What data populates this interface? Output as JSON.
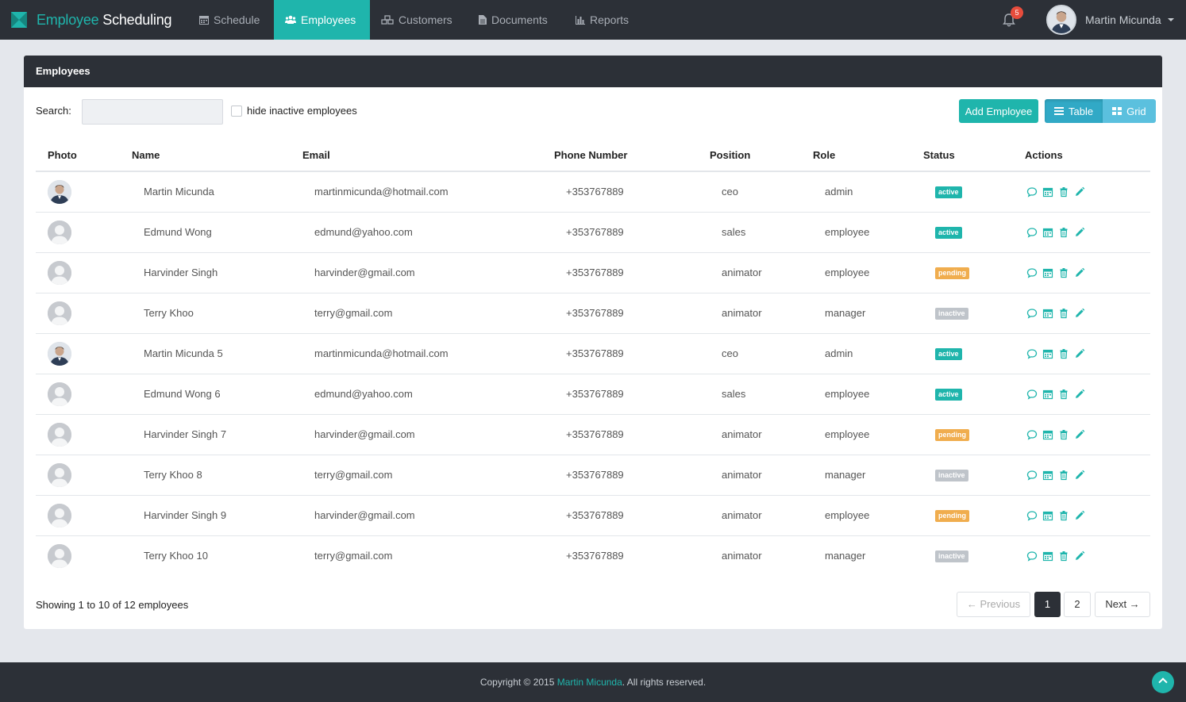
{
  "brand": {
    "part1": "Employee",
    "part2": "Scheduling"
  },
  "nav": [
    {
      "label": "Schedule",
      "icon": "calendar-icon"
    },
    {
      "label": "Employees",
      "icon": "users-icon",
      "active": true
    },
    {
      "label": "Customers",
      "icon": "cubes-icon"
    },
    {
      "label": "Documents",
      "icon": "file-icon"
    },
    {
      "label": "Reports",
      "icon": "bar-chart-icon"
    }
  ],
  "notifications": {
    "count": "5"
  },
  "user": {
    "name": "Martin Micunda"
  },
  "panel": {
    "title": "Employees"
  },
  "search": {
    "label": "Search:",
    "value": "",
    "placeholder": ""
  },
  "filter": {
    "hide_inactive_label": "hide inactive employees",
    "checked": false
  },
  "toolbar": {
    "add_label": "Add Employee",
    "table_label": "Table",
    "grid_label": "Grid",
    "view": "Table"
  },
  "table": {
    "columns": [
      "Photo",
      "Name",
      "Email",
      "Phone Number",
      "Position",
      "Role",
      "Status",
      "Actions"
    ],
    "rows": [
      {
        "photo": "user-photo",
        "name": "Martin Micunda",
        "email": "martinmicunda@hotmail.com",
        "phone": "+353767889",
        "position": "ceo",
        "role": "admin",
        "status": "active"
      },
      {
        "photo": "default-avatar",
        "name": "Edmund Wong",
        "email": "edmund@yahoo.com",
        "phone": "+353767889",
        "position": "sales",
        "role": "employee",
        "status": "active"
      },
      {
        "photo": "default-avatar",
        "name": "Harvinder Singh",
        "email": "harvinder@gmail.com",
        "phone": "+353767889",
        "position": "animator",
        "role": "employee",
        "status": "pending"
      },
      {
        "photo": "default-avatar",
        "name": "Terry Khoo",
        "email": "terry@gmail.com",
        "phone": "+353767889",
        "position": "animator",
        "role": "manager",
        "status": "inactive"
      },
      {
        "photo": "user-photo",
        "name": "Martin Micunda 5",
        "email": "martinmicunda@hotmail.com",
        "phone": "+353767889",
        "position": "ceo",
        "role": "admin",
        "status": "active"
      },
      {
        "photo": "default-avatar",
        "name": "Edmund Wong 6",
        "email": "edmund@yahoo.com",
        "phone": "+353767889",
        "position": "sales",
        "role": "employee",
        "status": "active"
      },
      {
        "photo": "default-avatar",
        "name": "Harvinder Singh 7",
        "email": "harvinder@gmail.com",
        "phone": "+353767889",
        "position": "animator",
        "role": "employee",
        "status": "pending"
      },
      {
        "photo": "default-avatar",
        "name": "Terry Khoo 8",
        "email": "terry@gmail.com",
        "phone": "+353767889",
        "position": "animator",
        "role": "manager",
        "status": "inactive"
      },
      {
        "photo": "default-avatar",
        "name": "Harvinder Singh 9",
        "email": "harvinder@gmail.com",
        "phone": "+353767889",
        "position": "animator",
        "role": "employee",
        "status": "pending"
      },
      {
        "photo": "default-avatar",
        "name": "Terry Khoo 10",
        "email": "terry@gmail.com",
        "phone": "+353767889",
        "position": "animator",
        "role": "manager",
        "status": "inactive"
      }
    ],
    "actions": [
      "comment-icon",
      "calendar-icon",
      "trash-icon",
      "pencil-icon"
    ]
  },
  "pagination": {
    "summary": "Showing 1 to 10 of 12 employees",
    "previous_label": "← Previous",
    "pages": [
      "1",
      "2"
    ],
    "current_page": "1",
    "next_label": "Next →"
  },
  "footer": {
    "prefix": "Copyright © 2015 ",
    "author": "Martin Micunda",
    "suffix": ". All rights reserved."
  },
  "colors": {
    "accent": "#1fb5ac",
    "dark": "#2c3037",
    "pending": "#f0ad4e",
    "inactive": "#bfc4ca",
    "info": "#5bc0de",
    "danger": "#e74c3c"
  }
}
